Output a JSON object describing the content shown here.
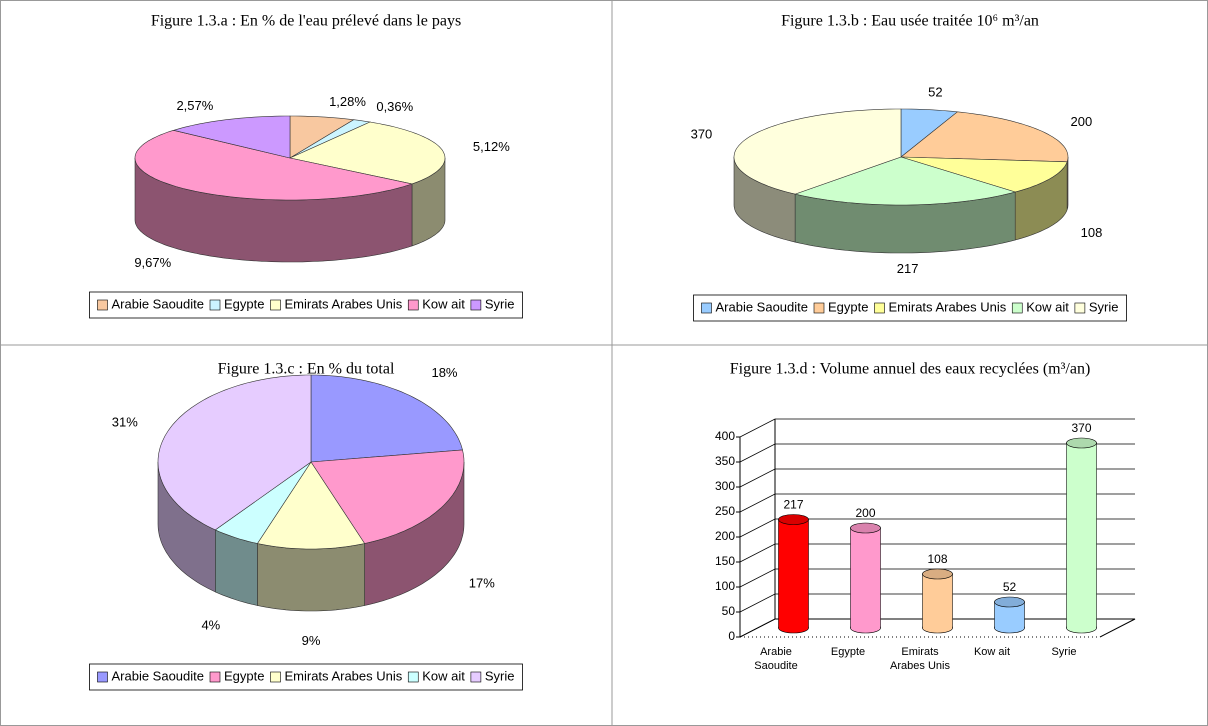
{
  "chart_data": [
    {
      "type": "pie",
      "title": "Figure 1.3.a : En % de l'eau prélevé dans le pays",
      "categories": [
        "Arabie Saoudite",
        "Egypte",
        "Emirats Arabes Unis",
        "Kow ait",
        "Syrie"
      ],
      "values": [
        1.28,
        0.36,
        5.12,
        9.67,
        2.57
      ],
      "value_labels": [
        "1,28%",
        "0,36%",
        "5,12%",
        "9,67%",
        "2,57%"
      ],
      "colors": [
        "#f8c8a0",
        "#ccf5ff",
        "#ffffcc",
        "#ff99cc",
        "#cc99ff"
      ],
      "legend": "bottom"
    },
    {
      "type": "pie",
      "title": "Figure 1.3.b : Eau usée traitée 10⁶ m³/an",
      "categories": [
        "Arabie Saoudite",
        "Egypte",
        "Emirats Arabes Unis",
        "Kow ait",
        "Syrie"
      ],
      "values": [
        52,
        200,
        108,
        217,
        370
      ],
      "colors": [
        "#99ccff",
        "#ffcc99",
        "#ffff99",
        "#ccffcc",
        "#ffffdd"
      ],
      "legend": "bottom"
    },
    {
      "type": "pie",
      "title": "Figure 1.3.c : En % du total",
      "categories": [
        "Arabie Saoudite",
        "Egypte",
        "Emirats Arabes Unis",
        "Kow ait",
        "Syrie"
      ],
      "values": [
        18,
        17,
        9,
        4,
        31
      ],
      "value_labels": [
        "18%",
        "17%",
        "9%",
        "4%",
        "31%"
      ],
      "colors": [
        "#9999ff",
        "#ff99cc",
        "#ffffcc",
        "#ccffff",
        "#e6ccff"
      ],
      "legend": "bottom"
    },
    {
      "type": "bar",
      "title": "Figure 1.3.d : Volume annuel des eaux recyclées (m³/an)",
      "categories": [
        "Arabie Saoudite",
        "Egypte",
        "Emirats Arabes Unis",
        "Kow ait",
        "Syrie"
      ],
      "values": [
        217,
        200,
        108,
        52,
        370
      ],
      "colors": [
        "#ff0000",
        "#ff99cc",
        "#ffcc99",
        "#99ccff",
        "#ccffcc"
      ],
      "ylim": [
        0,
        400
      ],
      "yticks": [
        0,
        50,
        100,
        150,
        200,
        250,
        300,
        350,
        400
      ],
      "grid": true
    }
  ]
}
